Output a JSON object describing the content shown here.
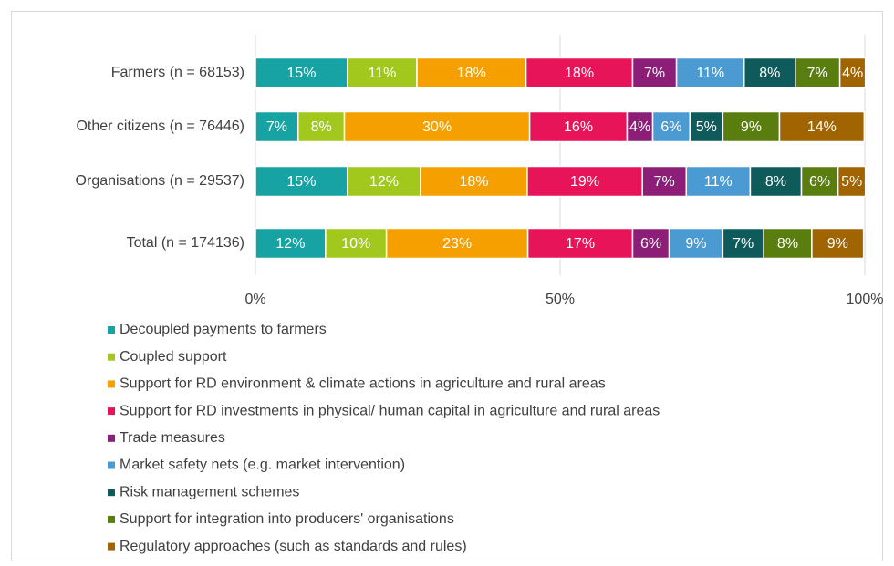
{
  "chart_data": {
    "type": "stacked_bar_horizontal",
    "categories": [
      "Farmers (n = 68153)",
      "Other citizens (n = 76446)",
      "Organisations (n = 29537)",
      "Total (n = 174136)"
    ],
    "series": [
      {
        "name": "Decoupled payments to farmers",
        "color": "#17a3a3",
        "values": [
          15.1,
          7.0,
          15.1,
          11.5
        ],
        "value_labels": [
          "15%",
          "7%",
          "15%",
          "12%"
        ]
      },
      {
        "name": "Coupled support",
        "color": "#a2c81e",
        "values": [
          11.4,
          7.6,
          12.0,
          10.0
        ],
        "value_labels": [
          "11%",
          "8%",
          "12%",
          "10%"
        ]
      },
      {
        "name": "Support for RD environment & climate actions in agriculture and rural  areas",
        "color": "#f5a000",
        "values": [
          17.9,
          30.4,
          17.5,
          23.2
        ],
        "value_labels": [
          "18%",
          "30%",
          "18%",
          "23%"
        ]
      },
      {
        "name": "Support for RD investments in physical/ human capital in agriculture and rural areas",
        "color": "#e8145a",
        "values": [
          17.5,
          16.0,
          18.9,
          17.2
        ],
        "value_labels": [
          "18%",
          "16%",
          "19%",
          "17%"
        ]
      },
      {
        "name": "Trade measures",
        "color": "#8c1e78",
        "values": [
          7.2,
          4.2,
          7.2,
          6.0
        ],
        "value_labels": [
          "7%",
          "4%",
          "7%",
          "6%"
        ]
      },
      {
        "name": "Market safety nets (e.g. market intervention)",
        "color": "#4b9bd2",
        "values": [
          11.1,
          6.1,
          10.5,
          8.8
        ],
        "value_labels": [
          "11%",
          "6%",
          "11%",
          "9%"
        ]
      },
      {
        "name": "Risk management schemes",
        "color": "#0f5a5a",
        "values": [
          8.4,
          5.4,
          8.4,
          6.7
        ],
        "value_labels": [
          "8%",
          "5%",
          "8%",
          "7%"
        ]
      },
      {
        "name": "Support for integration into producers' organisations",
        "color": "#5a7d0f",
        "values": [
          7.3,
          9.3,
          6.0,
          7.9
        ],
        "value_labels": [
          "7%",
          "9%",
          "6%",
          "8%"
        ]
      },
      {
        "name": "Regulatory approaches (such as standards and rules)",
        "color": "#a06400",
        "values": [
          4.2,
          13.9,
          4.5,
          8.5
        ],
        "value_labels": [
          "4%",
          "14%",
          "5%",
          "9%"
        ]
      }
    ],
    "xlim": [
      0,
      100
    ],
    "xticks": [
      {
        "value": 0,
        "label": "0%"
      },
      {
        "value": 50,
        "label": "50%"
      },
      {
        "value": 100,
        "label": "100%"
      }
    ],
    "grid": true,
    "legend": "bottom"
  }
}
